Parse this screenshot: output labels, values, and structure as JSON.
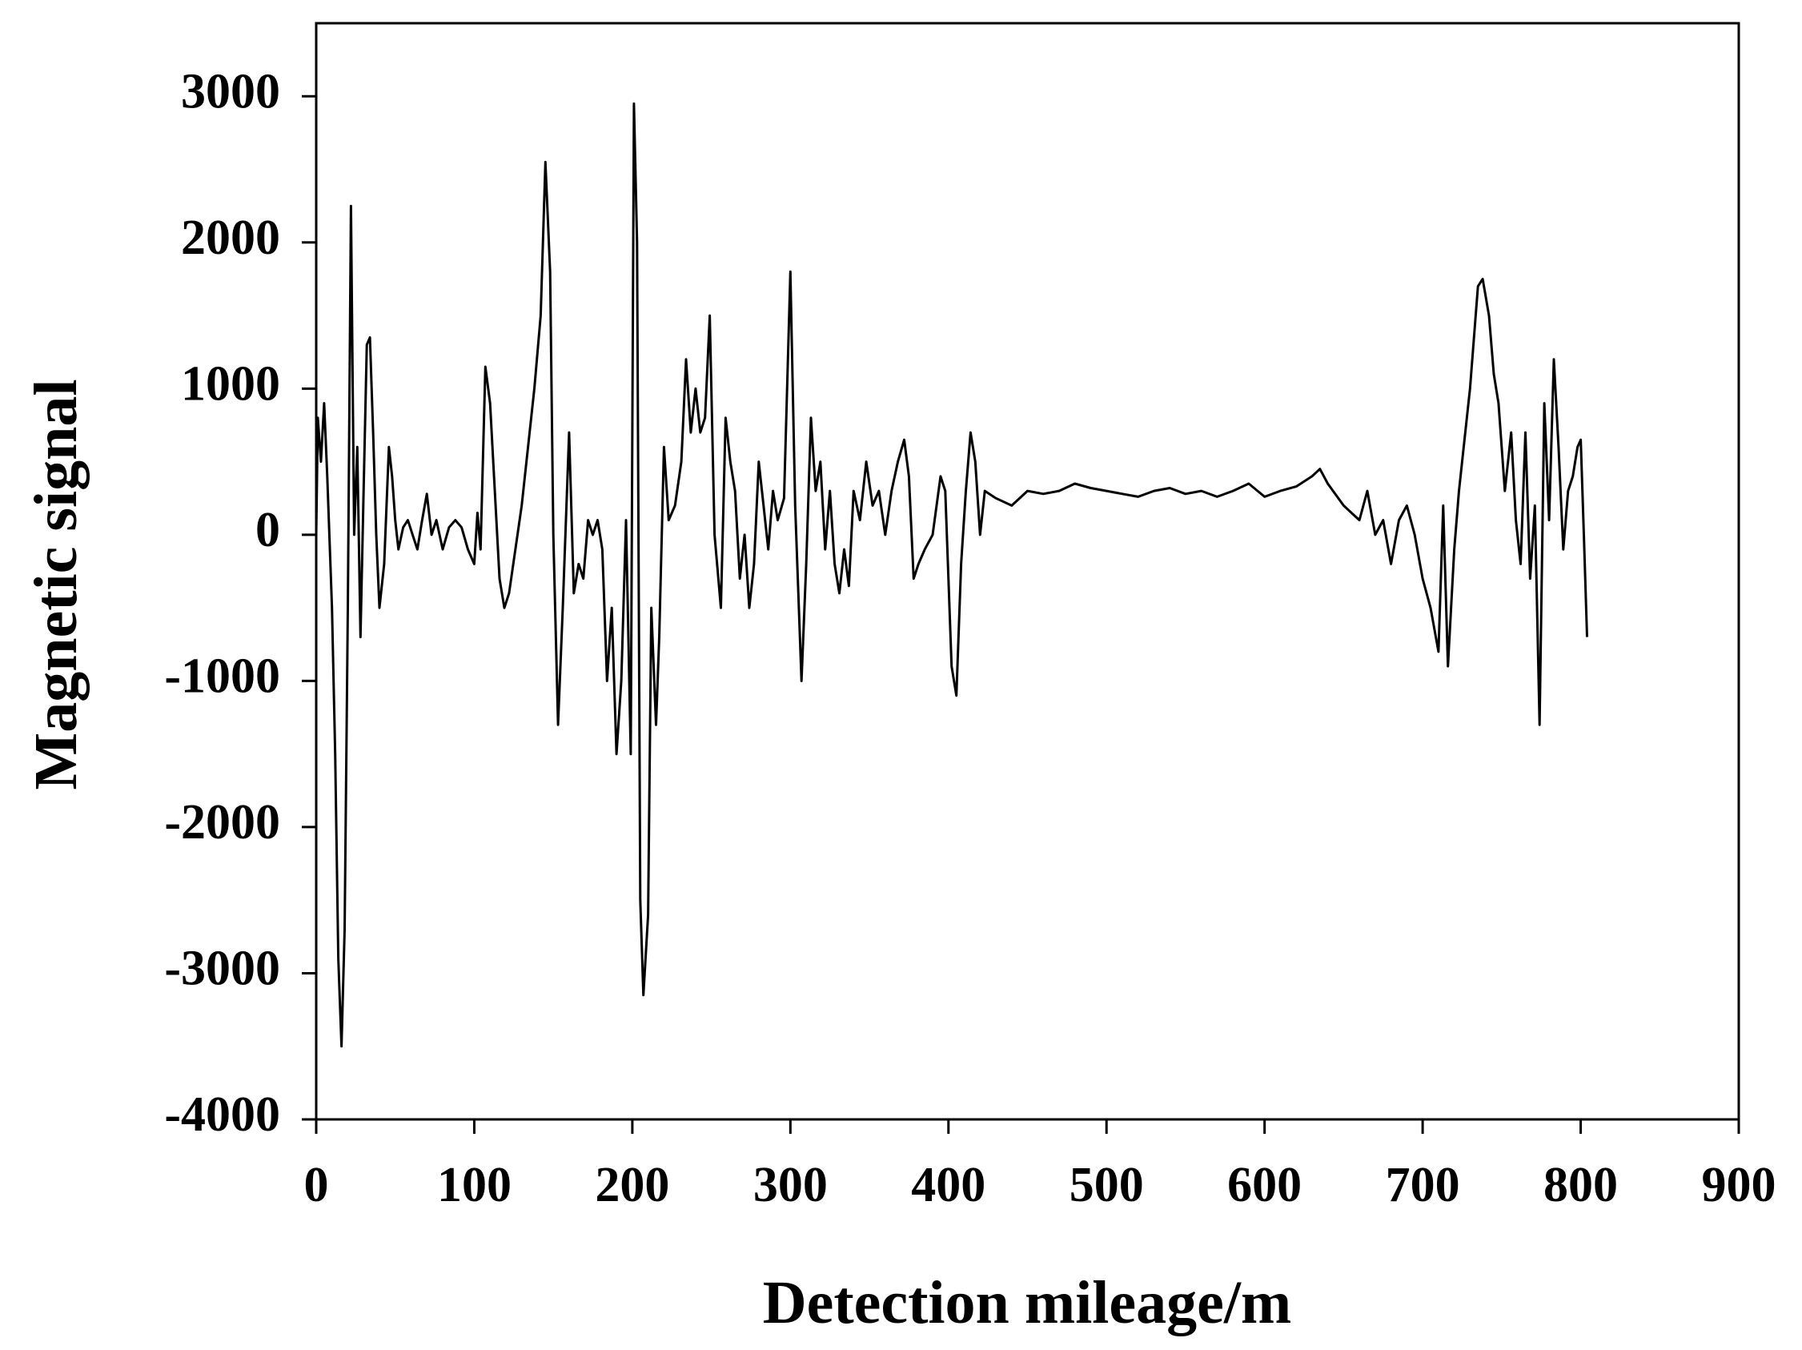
{
  "chart_data": {
    "type": "line",
    "xlabel": "Detection mileage/m",
    "ylabel": "Magnetic signal",
    "xlim": [
      0,
      900
    ],
    "ylim": [
      -4000,
      3500
    ],
    "xticks": [
      0,
      100,
      200,
      300,
      400,
      500,
      600,
      700,
      800,
      900
    ],
    "yticks": [
      -4000,
      -3000,
      -2000,
      -1000,
      0,
      1000,
      2000,
      3000
    ],
    "series": [
      {
        "color": "#000000",
        "x": [
          0,
          1,
          3,
          5,
          7,
          10,
          12,
          14,
          16,
          18,
          20,
          22,
          24,
          26,
          28,
          30,
          32,
          34,
          36,
          38,
          40,
          43,
          46,
          48,
          50,
          52,
          55,
          58,
          61,
          64,
          67,
          70,
          73,
          76,
          80,
          84,
          88,
          92,
          96,
          100,
          102,
          104,
          107,
          110,
          113,
          116,
          119,
          122,
          126,
          130,
          134,
          138,
          142,
          145,
          148,
          150,
          153,
          156,
          160,
          163,
          166,
          169,
          172,
          175,
          178,
          181,
          184,
          187,
          190,
          193,
          196,
          199,
          201,
          203,
          205,
          207,
          210,
          212,
          215,
          217,
          220,
          223,
          227,
          231,
          234,
          237,
          240,
          243,
          246,
          249,
          252,
          256,
          259,
          262,
          265,
          268,
          271,
          274,
          277,
          280,
          283,
          286,
          289,
          292,
          296,
          300,
          303,
          307,
          310,
          313,
          316,
          319,
          322,
          325,
          328,
          331,
          334,
          337,
          340,
          344,
          348,
          352,
          356,
          360,
          364,
          368,
          372,
          375,
          378,
          381,
          385,
          390,
          395,
          398,
          402,
          405,
          408,
          411,
          414,
          417,
          420,
          423,
          430,
          440,
          450,
          460,
          470,
          480,
          490,
          500,
          510,
          520,
          530,
          540,
          550,
          560,
          570,
          580,
          590,
          600,
          610,
          620,
          630,
          635,
          640,
          650,
          660,
          665,
          670,
          675,
          680,
          685,
          690,
          695,
          700,
          705,
          710,
          713,
          716,
          720,
          723,
          726,
          730,
          735,
          738,
          742,
          745,
          748,
          752,
          756,
          759,
          762,
          765,
          768,
          771,
          774,
          777,
          780,
          783,
          786,
          789,
          792,
          795,
          798,
          800,
          802,
          804
        ],
        "values": [
          0,
          800,
          500,
          900,
          400,
          -500,
          -1500,
          -2900,
          -3500,
          -2700,
          -500,
          2250,
          0,
          600,
          -700,
          300,
          1300,
          1350,
          700,
          0,
          -500,
          -200,
          600,
          400,
          100,
          -100,
          50,
          100,
          0,
          -100,
          100,
          280,
          0,
          100,
          -100,
          50,
          100,
          50,
          -100,
          -200,
          150,
          -100,
          1150,
          900,
          300,
          -300,
          -500,
          -400,
          -100,
          200,
          600,
          1000,
          1500,
          2550,
          1800,
          0,
          -1300,
          -500,
          700,
          -400,
          -200,
          -300,
          100,
          0,
          100,
          -100,
          -1000,
          -500,
          -1500,
          -1000,
          100,
          -1500,
          2950,
          2000,
          -2500,
          -3150,
          -2600,
          -500,
          -1300,
          -700,
          600,
          100,
          200,
          500,
          1200,
          700,
          1000,
          700,
          800,
          1500,
          0,
          -500,
          800,
          500,
          300,
          -300,
          0,
          -500,
          -200,
          500,
          200,
          -100,
          300,
          100,
          250,
          1800,
          200,
          -1000,
          -200,
          800,
          300,
          500,
          -100,
          300,
          -200,
          -400,
          -100,
          -350,
          300,
          100,
          500,
          200,
          300,
          0,
          300,
          500,
          650,
          400,
          -300,
          -200,
          -100,
          0,
          400,
          300,
          -900,
          -1100,
          -200,
          300,
          700,
          500,
          0,
          300,
          250,
          200,
          300,
          280,
          300,
          350,
          320,
          300,
          280,
          260,
          300,
          320,
          280,
          300,
          260,
          300,
          350,
          260,
          300,
          330,
          400,
          450,
          350,
          200,
          100,
          300,
          0,
          100,
          -200,
          100,
          200,
          0,
          -300,
          -500,
          -800,
          200,
          -900,
          -100,
          300,
          600,
          1000,
          1700,
          1750,
          1500,
          1100,
          900,
          300,
          700,
          100,
          -200,
          700,
          -300,
          200,
          -1300,
          900,
          100,
          1200,
          600,
          -100,
          300,
          400,
          600,
          650,
          0,
          -700
        ]
      }
    ]
  }
}
